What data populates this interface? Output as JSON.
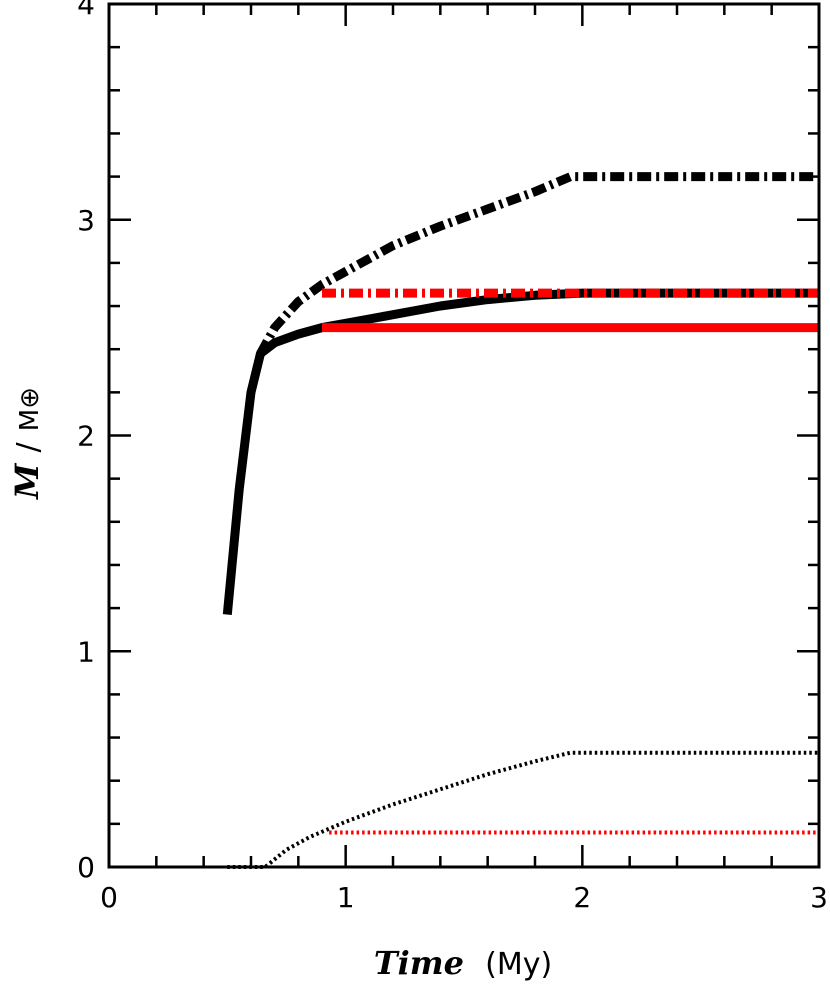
{
  "chart_data": {
    "type": "line",
    "xlabel": {
      "main": "Time",
      "unit": "(My)"
    },
    "ylabel": {
      "main": "M",
      "sep": "/",
      "unit": "M⊕"
    },
    "xlim": [
      0,
      3
    ],
    "ylim": [
      0,
      4
    ],
    "x_ticks": [
      0,
      1,
      2,
      3
    ],
    "y_ticks": [
      0,
      1,
      2,
      3,
      4
    ],
    "x_minor_step": 0.2,
    "y_minor_step": 0.2,
    "grid": false,
    "series": [
      {
        "color": "#000000",
        "style": "solid",
        "width": "thick",
        "points": [
          [
            0.5,
            1.17
          ],
          [
            0.55,
            1.75
          ],
          [
            0.6,
            2.2
          ],
          [
            0.64,
            2.38
          ],
          [
            0.7,
            2.43
          ],
          [
            0.8,
            2.47
          ],
          [
            0.9,
            2.5
          ],
          [
            1.0,
            2.52
          ],
          [
            1.2,
            2.56
          ],
          [
            1.4,
            2.6
          ],
          [
            1.6,
            2.63
          ],
          [
            1.8,
            2.65
          ],
          [
            2.0,
            2.66
          ],
          [
            3.0,
            2.66
          ]
        ]
      },
      {
        "color": "#ff0000",
        "style": "solid",
        "width": "thick",
        "points": [
          [
            0.9,
            2.5
          ],
          [
            3.0,
            2.5
          ]
        ]
      },
      {
        "color": "#000000",
        "style": "dashdot",
        "width": "thick",
        "points": [
          [
            0.64,
            2.38
          ],
          [
            0.7,
            2.5
          ],
          [
            0.8,
            2.62
          ],
          [
            0.9,
            2.7
          ],
          [
            1.0,
            2.76
          ],
          [
            1.2,
            2.88
          ],
          [
            1.4,
            2.97
          ],
          [
            1.6,
            3.05
          ],
          [
            1.8,
            3.13
          ],
          [
            1.95,
            3.2
          ],
          [
            3.0,
            3.2
          ]
        ]
      },
      {
        "color": "#ff0000",
        "style": "dashdot",
        "width": "thick",
        "points": [
          [
            0.9,
            2.66
          ],
          [
            3.0,
            2.66
          ]
        ]
      },
      {
        "color": "#000000",
        "style": "dotted",
        "width": "medium",
        "points": [
          [
            0.5,
            0.0
          ],
          [
            0.66,
            0.0
          ],
          [
            0.75,
            0.08
          ],
          [
            0.85,
            0.14
          ],
          [
            1.0,
            0.21
          ],
          [
            1.2,
            0.29
          ],
          [
            1.4,
            0.36
          ],
          [
            1.6,
            0.43
          ],
          [
            1.8,
            0.49
          ],
          [
            1.95,
            0.53
          ],
          [
            3.0,
            0.53
          ]
        ]
      },
      {
        "color": "#ff0000",
        "style": "dotted",
        "width": "medium",
        "points": [
          [
            0.93,
            0.16
          ],
          [
            3.0,
            0.16
          ]
        ]
      }
    ]
  }
}
